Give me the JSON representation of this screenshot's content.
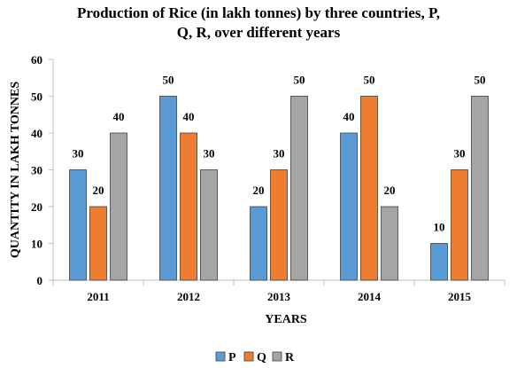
{
  "chart_data": {
    "type": "bar",
    "title_line1": "Production of Rice (in lakh tonnes) by three countries, P,",
    "title_line2": "Q, R, over different years",
    "xlabel": "YEARS",
    "ylabel": "QUANTITY IN LAKH TONNES",
    "categories": [
      "2011",
      "2012",
      "2013",
      "2014",
      "2015"
    ],
    "ylim": [
      0,
      60
    ],
    "yticks": [
      "0",
      "10",
      "20",
      "30",
      "40",
      "50",
      "60"
    ],
    "grid": false,
    "legend_position": "bottom",
    "series": [
      {
        "name": "P",
        "color": "#5b9bd5",
        "values": [
          30,
          50,
          20,
          40,
          10
        ]
      },
      {
        "name": "Q",
        "color": "#ed7d31",
        "values": [
          20,
          40,
          30,
          50,
          30
        ]
      },
      {
        "name": "R",
        "color": "#a5a5a5",
        "values": [
          40,
          30,
          50,
          20,
          50
        ]
      }
    ]
  }
}
